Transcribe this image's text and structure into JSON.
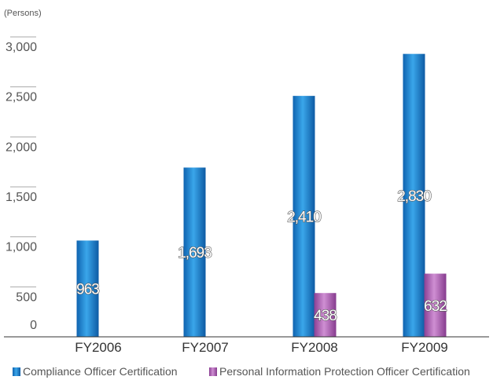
{
  "chart_data": {
    "type": "bar",
    "unit_label": "(Persons)",
    "categories": [
      "FY2006",
      "FY2007",
      "FY2008",
      "FY2009"
    ],
    "series": [
      {
        "name": "Compliance Officer Certification",
        "values": [
          963,
          1693,
          2410,
          2830
        ],
        "color": "#1f8ed6"
      },
      {
        "name": "Personal Information Protection Officer Certification",
        "values": [
          null,
          null,
          438,
          632
        ],
        "color": "#b266b8"
      }
    ],
    "yticks": [
      "0",
      "500",
      "1,000",
      "1,500",
      "2,000",
      "2,500",
      "3,000"
    ],
    "value_labels": [
      [
        "963",
        "1,693",
        "2,410",
        "2,830"
      ],
      [
        "",
        "",
        "438",
        "632"
      ]
    ],
    "ylim": [
      0,
      3000
    ],
    "legend_position": "bottom"
  }
}
